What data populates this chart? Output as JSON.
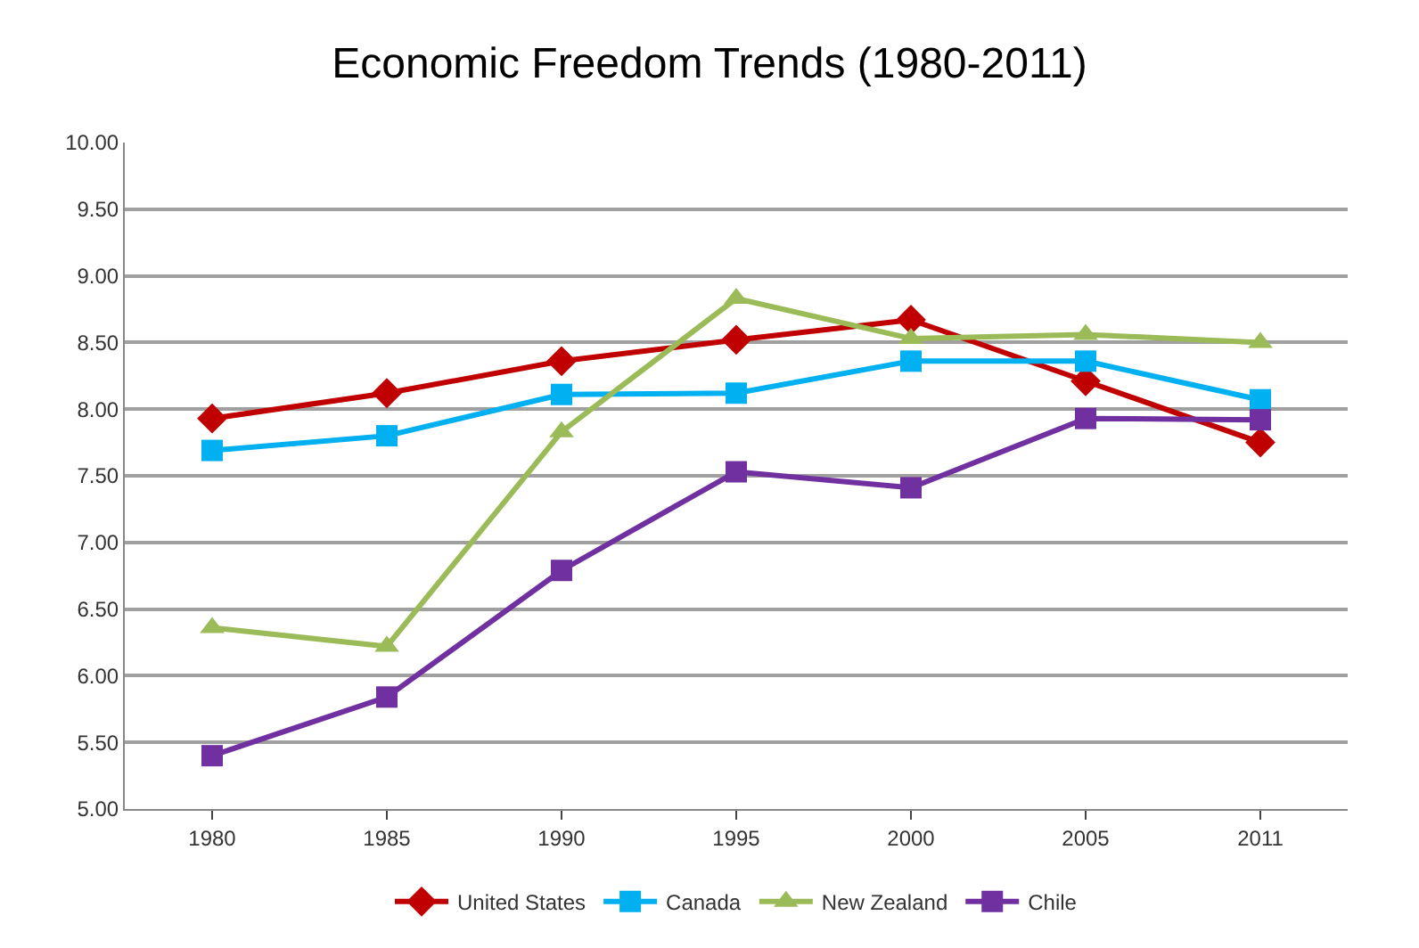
{
  "chart_data": {
    "type": "line",
    "title": "Economic Freedom Trends (1980-2011)",
    "categories": [
      "1980",
      "1985",
      "1990",
      "1995",
      "2000",
      "2005",
      "2011"
    ],
    "series": [
      {
        "name": "United States",
        "color": "#c00000",
        "marker": "diamond",
        "values": [
          7.93,
          8.12,
          8.36,
          8.52,
          8.67,
          8.21,
          7.75
        ]
      },
      {
        "name": "Canada",
        "color": "#00b0f0",
        "marker": "square",
        "values": [
          7.69,
          7.8,
          8.11,
          8.12,
          8.36,
          8.36,
          8.07
        ]
      },
      {
        "name": "New Zealand",
        "color": "#9bbb59",
        "marker": "triangle",
        "values": [
          6.36,
          6.22,
          7.83,
          8.83,
          8.53,
          8.56,
          8.5
        ]
      },
      {
        "name": "Chile",
        "color": "#7030a0",
        "marker": "square",
        "values": [
          5.4,
          5.84,
          6.79,
          7.53,
          7.41,
          7.93,
          7.92
        ]
      }
    ],
    "ylim": [
      5,
      10
    ],
    "yticks": [
      {
        "value": 5,
        "label": "5.00"
      },
      {
        "value": 5.5,
        "label": "5.50"
      },
      {
        "value": 6,
        "label": "6.00"
      },
      {
        "value": 6.5,
        "label": "6.50"
      },
      {
        "value": 7,
        "label": "7.00"
      },
      {
        "value": 7.5,
        "label": "7.50"
      },
      {
        "value": 8,
        "label": "8.00"
      },
      {
        "value": 8.5,
        "label": "8.50"
      },
      {
        "value": 9,
        "label": "9.00"
      },
      {
        "value": 9.5,
        "label": "9.50"
      },
      {
        "value": 10,
        "label": "10.00"
      }
    ],
    "grid": "y",
    "legend": "bottom",
    "line_style": "solid"
  }
}
